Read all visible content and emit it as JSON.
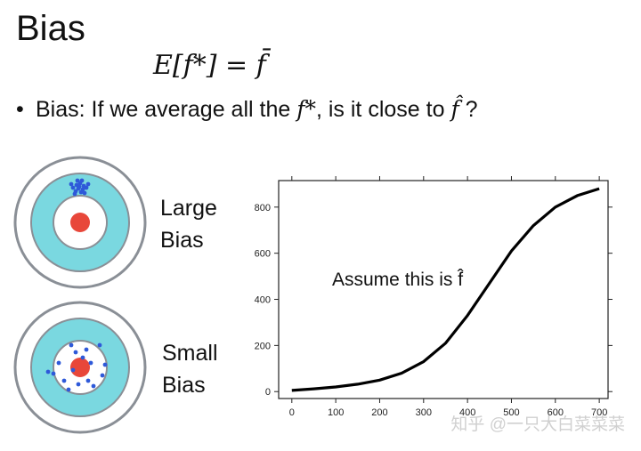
{
  "slide": {
    "title": "Bias",
    "formula": "E[f*] = f̄",
    "bullet": {
      "text_before": "Bias: If we average all the ",
      "var1": "f*",
      "text_middle": ", is it close to ",
      "var2": "f̂",
      "text_after": " ?"
    },
    "target_large_label_line1": "Large",
    "target_large_label_line2": "Bias",
    "target_small_label_line1": "Small",
    "target_small_label_line2": "Bias",
    "watermark": "知乎 @一只大白菜菜菜"
  },
  "colors": {
    "bullseye_red": "#e8473a",
    "ring_cyan": "#7ad8e0",
    "dot_blue": "#2e59d9"
  },
  "chart_data": {
    "type": "line",
    "annotation": "Assume this is f̂",
    "xlabel": "",
    "ylabel": "",
    "xlim": [
      -30,
      720
    ],
    "ylim": [
      -30,
      915
    ],
    "xticks": [
      0,
      100,
      200,
      300,
      400,
      500,
      600,
      700
    ],
    "yticks": [
      0,
      200,
      400,
      600,
      800
    ],
    "series": [
      {
        "x": [
          0,
          50,
          100,
          150,
          200,
          250,
          300,
          350,
          400,
          450,
          500,
          550,
          600,
          650,
          700
        ],
        "values": [
          5,
          12,
          20,
          32,
          50,
          80,
          130,
          210,
          330,
          470,
          610,
          720,
          800,
          850,
          880
        ]
      }
    ]
  }
}
